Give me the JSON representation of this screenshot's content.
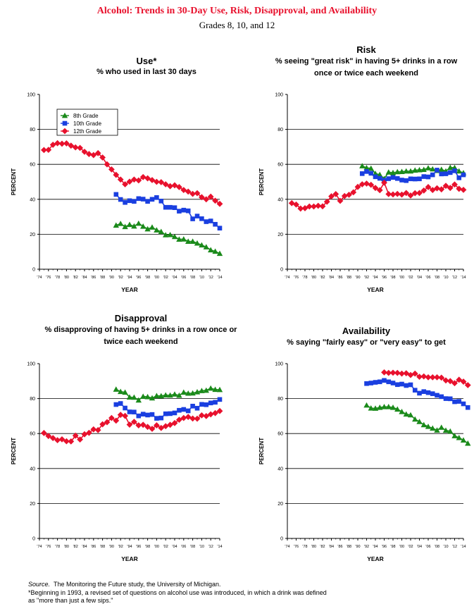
{
  "header": {
    "title": "Alcohol: Trends in 30-Day Use, Risk, Disapproval, and Availability",
    "subtitle": "Grades 8, 10, and 12"
  },
  "legend": {
    "grade8": "8th Grade",
    "grade10": "10th Grade",
    "grade12": "12th Grade"
  },
  "colors": {
    "grade8": "#1a8a1a",
    "grade10": "#1a3fe0",
    "grade12": "#e8112d",
    "title": "#e8112d"
  },
  "x_tick_labels": [
    "'74",
    "'76",
    "'78",
    "'80",
    "'82",
    "'84",
    "'86",
    "'88",
    "'90",
    "'92",
    "'94",
    "'96",
    "'98",
    "'00",
    "'02",
    "'04",
    "'06",
    "'08",
    "'10",
    "'12",
    "'14"
  ],
  "y_tick_labels": [
    "0",
    "20",
    "40",
    "60",
    "80",
    "100"
  ],
  "footer": {
    "source_label": "Source.",
    "source_text": "The Monitoring the Future study, the University of Michigan.",
    "note_line1": "*Beginning in 1993, a revised set of questions on alcohol use was introduced, in which a drink was defined",
    "note_line2": "as \"more than just a few sips.\""
  },
  "chart_data": [
    {
      "type": "line",
      "title": "Use*",
      "subtitle": "% who used in last 30 days",
      "xlabel": "YEAR",
      "ylabel": "PERCENT",
      "ylim": [
        0,
        100
      ],
      "xlim": [
        1974,
        2014
      ],
      "legend": "top-left",
      "series": [
        {
          "name": "8th Grade",
          "key": "grade8",
          "start": 1991,
          "values": [
            25.1,
            26.1,
            24.3,
            25.5,
            24.6,
            26.2,
            24.5,
            23.0,
            24.0,
            22.4,
            21.5,
            19.6,
            19.7,
            18.6,
            17.1,
            17.2,
            15.9,
            15.9,
            14.9,
            13.8,
            12.7,
            11.0,
            10.2,
            9.0
          ]
        },
        {
          "name": "10th Grade",
          "key": "grade10",
          "start": 1991,
          "values": [
            42.8,
            39.9,
            38.2,
            39.2,
            38.8,
            40.4,
            40.1,
            38.8,
            40.0,
            41.0,
            39.0,
            35.4,
            35.4,
            35.2,
            33.2,
            33.8,
            33.4,
            28.8,
            30.4,
            28.9,
            27.2,
            27.6,
            25.7,
            23.5
          ]
        },
        {
          "name": "12th Grade",
          "key": "grade12",
          "start": 1975,
          "values": [
            68.2,
            68.3,
            71.2,
            72.1,
            71.8,
            72.0,
            70.7,
            69.7,
            69.4,
            67.2,
            65.9,
            65.3,
            66.4,
            63.9,
            60.0,
            57.1,
            54.0,
            51.3,
            48.6,
            50.1,
            51.3,
            50.8,
            52.7,
            52.0,
            51.0,
            50.0,
            49.8,
            48.6,
            47.5,
            48.0,
            47.0,
            45.3,
            44.4,
            43.1,
            43.5,
            41.2,
            40.0,
            41.5,
            39.2,
            37.4
          ]
        }
      ]
    },
    {
      "type": "line",
      "title": "Risk",
      "subtitle": "% seeing \"great risk\" in having 5+ drinks in a row once or twice each weekend",
      "xlabel": "YEAR",
      "ylabel": "PERCENT",
      "ylim": [
        0,
        100
      ],
      "xlim": [
        1974,
        2014
      ],
      "series": [
        {
          "name": "8th Grade",
          "key": "grade8",
          "start": 1991,
          "values": [
            59.1,
            58.0,
            57.7,
            54.7,
            54.1,
            51.8,
            55.5,
            55.2,
            55.7,
            55.8,
            56.1,
            56.1,
            56.6,
            56.8,
            57.0,
            57.9,
            57.3,
            56.4,
            57.1,
            56.1,
            58.2,
            58.1,
            56.1,
            55.1
          ]
        },
        {
          "name": "10th Grade",
          "key": "grade10",
          "start": 1991,
          "values": [
            54.7,
            55.9,
            54.9,
            52.9,
            52.0,
            50.9,
            51.8,
            52.5,
            51.9,
            51.0,
            50.7,
            51.7,
            51.6,
            51.7,
            53.0,
            52.8,
            54.0,
            56.7,
            54.5,
            54.6,
            55.3,
            56.3,
            52.3,
            54.0
          ]
        },
        {
          "name": "12th Grade",
          "key": "grade12",
          "start": 1975,
          "values": [
            37.8,
            37.0,
            34.7,
            34.9,
            35.9,
            35.9,
            36.3,
            36.0,
            38.6,
            41.7,
            43.0,
            39.1,
            41.9,
            42.6,
            44.0,
            47.1,
            48.6,
            49.0,
            48.3,
            46.5,
            45.2,
            49.5,
            43.0,
            42.8,
            43.1,
            42.7,
            43.6,
            42.2,
            43.5,
            43.6,
            45.0,
            47.0,
            45.3,
            46.3,
            45.7,
            47.7,
            46.5,
            48.5,
            46.0,
            45.4
          ]
        }
      ]
    },
    {
      "type": "line",
      "title": "Disapproval",
      "subtitle": "% disapproving of having 5+ drinks in a row once or twice each weekend",
      "xlabel": "YEAR",
      "ylabel": "PERCENT",
      "ylim": [
        0,
        100
      ],
      "xlim": [
        1974,
        2014
      ],
      "series": [
        {
          "name": "8th Grade",
          "key": "grade8",
          "start": 1991,
          "values": [
            85.3,
            84.0,
            83.6,
            80.8,
            80.7,
            79.1,
            81.2,
            81.0,
            80.3,
            81.6,
            81.5,
            82.0,
            81.9,
            82.5,
            81.8,
            83.6,
            83.0,
            83.1,
            83.8,
            84.5,
            84.7,
            85.9,
            85.2,
            85.1
          ]
        },
        {
          "name": "10th Grade",
          "key": "grade10",
          "start": 1991,
          "values": [
            76.6,
            77.2,
            74.6,
            72.4,
            72.3,
            70.1,
            71.1,
            70.6,
            70.9,
            68.7,
            68.9,
            71.3,
            71.4,
            71.8,
            73.3,
            73.8,
            73.0,
            75.7,
            74.5,
            76.7,
            76.5,
            77.5,
            77.9,
            79.5
          ]
        },
        {
          "name": "12th Grade",
          "key": "grade12",
          "start": 1975,
          "values": [
            60.3,
            58.6,
            57.4,
            56.2,
            56.7,
            55.6,
            55.5,
            58.8,
            56.6,
            59.6,
            60.4,
            62.4,
            62.0,
            65.3,
            66.5,
            68.9,
            67.4,
            70.7,
            70.1,
            65.1,
            66.7,
            64.7,
            65.0,
            63.8,
            62.7,
            64.7,
            63.2,
            64.2,
            65.0,
            66.0,
            67.9,
            68.9,
            69.5,
            68.6,
            68.5,
            70.4,
            70.0,
            71.0,
            71.7,
            72.9
          ]
        }
      ]
    },
    {
      "type": "line",
      "title": "Availability",
      "subtitle": "% saying \"fairly easy\" or \"very easy\" to get",
      "xlabel": "YEAR",
      "ylabel": "PERCENT",
      "ylim": [
        0,
        100
      ],
      "xlim": [
        1974,
        2014
      ],
      "series": [
        {
          "name": "8th Grade",
          "key": "grade8",
          "start": 1992,
          "values": [
            76.2,
            74.5,
            74.4,
            74.9,
            75.3,
            75.3,
            74.9,
            73.9,
            72.5,
            71.1,
            70.6,
            68.2,
            66.8,
            65.0,
            64.0,
            63.0,
            61.9,
            63.5,
            61.8,
            61.3,
            58.7,
            57.6,
            56.2,
            54.4
          ]
        },
        {
          "name": "10th Grade",
          "key": "grade10",
          "start": 1992,
          "values": [
            88.6,
            88.9,
            89.3,
            89.6,
            90.4,
            89.6,
            88.9,
            88.0,
            88.3,
            87.5,
            87.9,
            84.8,
            83.1,
            84.0,
            83.4,
            82.8,
            81.9,
            81.1,
            80.0,
            79.9,
            78.2,
            78.4,
            77.0,
            74.9
          ]
        },
        {
          "name": "12th Grade",
          "key": "grade12",
          "start": 1996,
          "values": [
            95.0,
            94.7,
            94.8,
            94.7,
            94.3,
            94.5,
            93.5,
            94.3,
            92.5,
            92.7,
            92.2,
            92.2,
            92.2,
            92.0,
            90.4,
            90.0,
            88.8,
            90.8,
            89.7,
            87.7
          ]
        }
      ]
    }
  ]
}
